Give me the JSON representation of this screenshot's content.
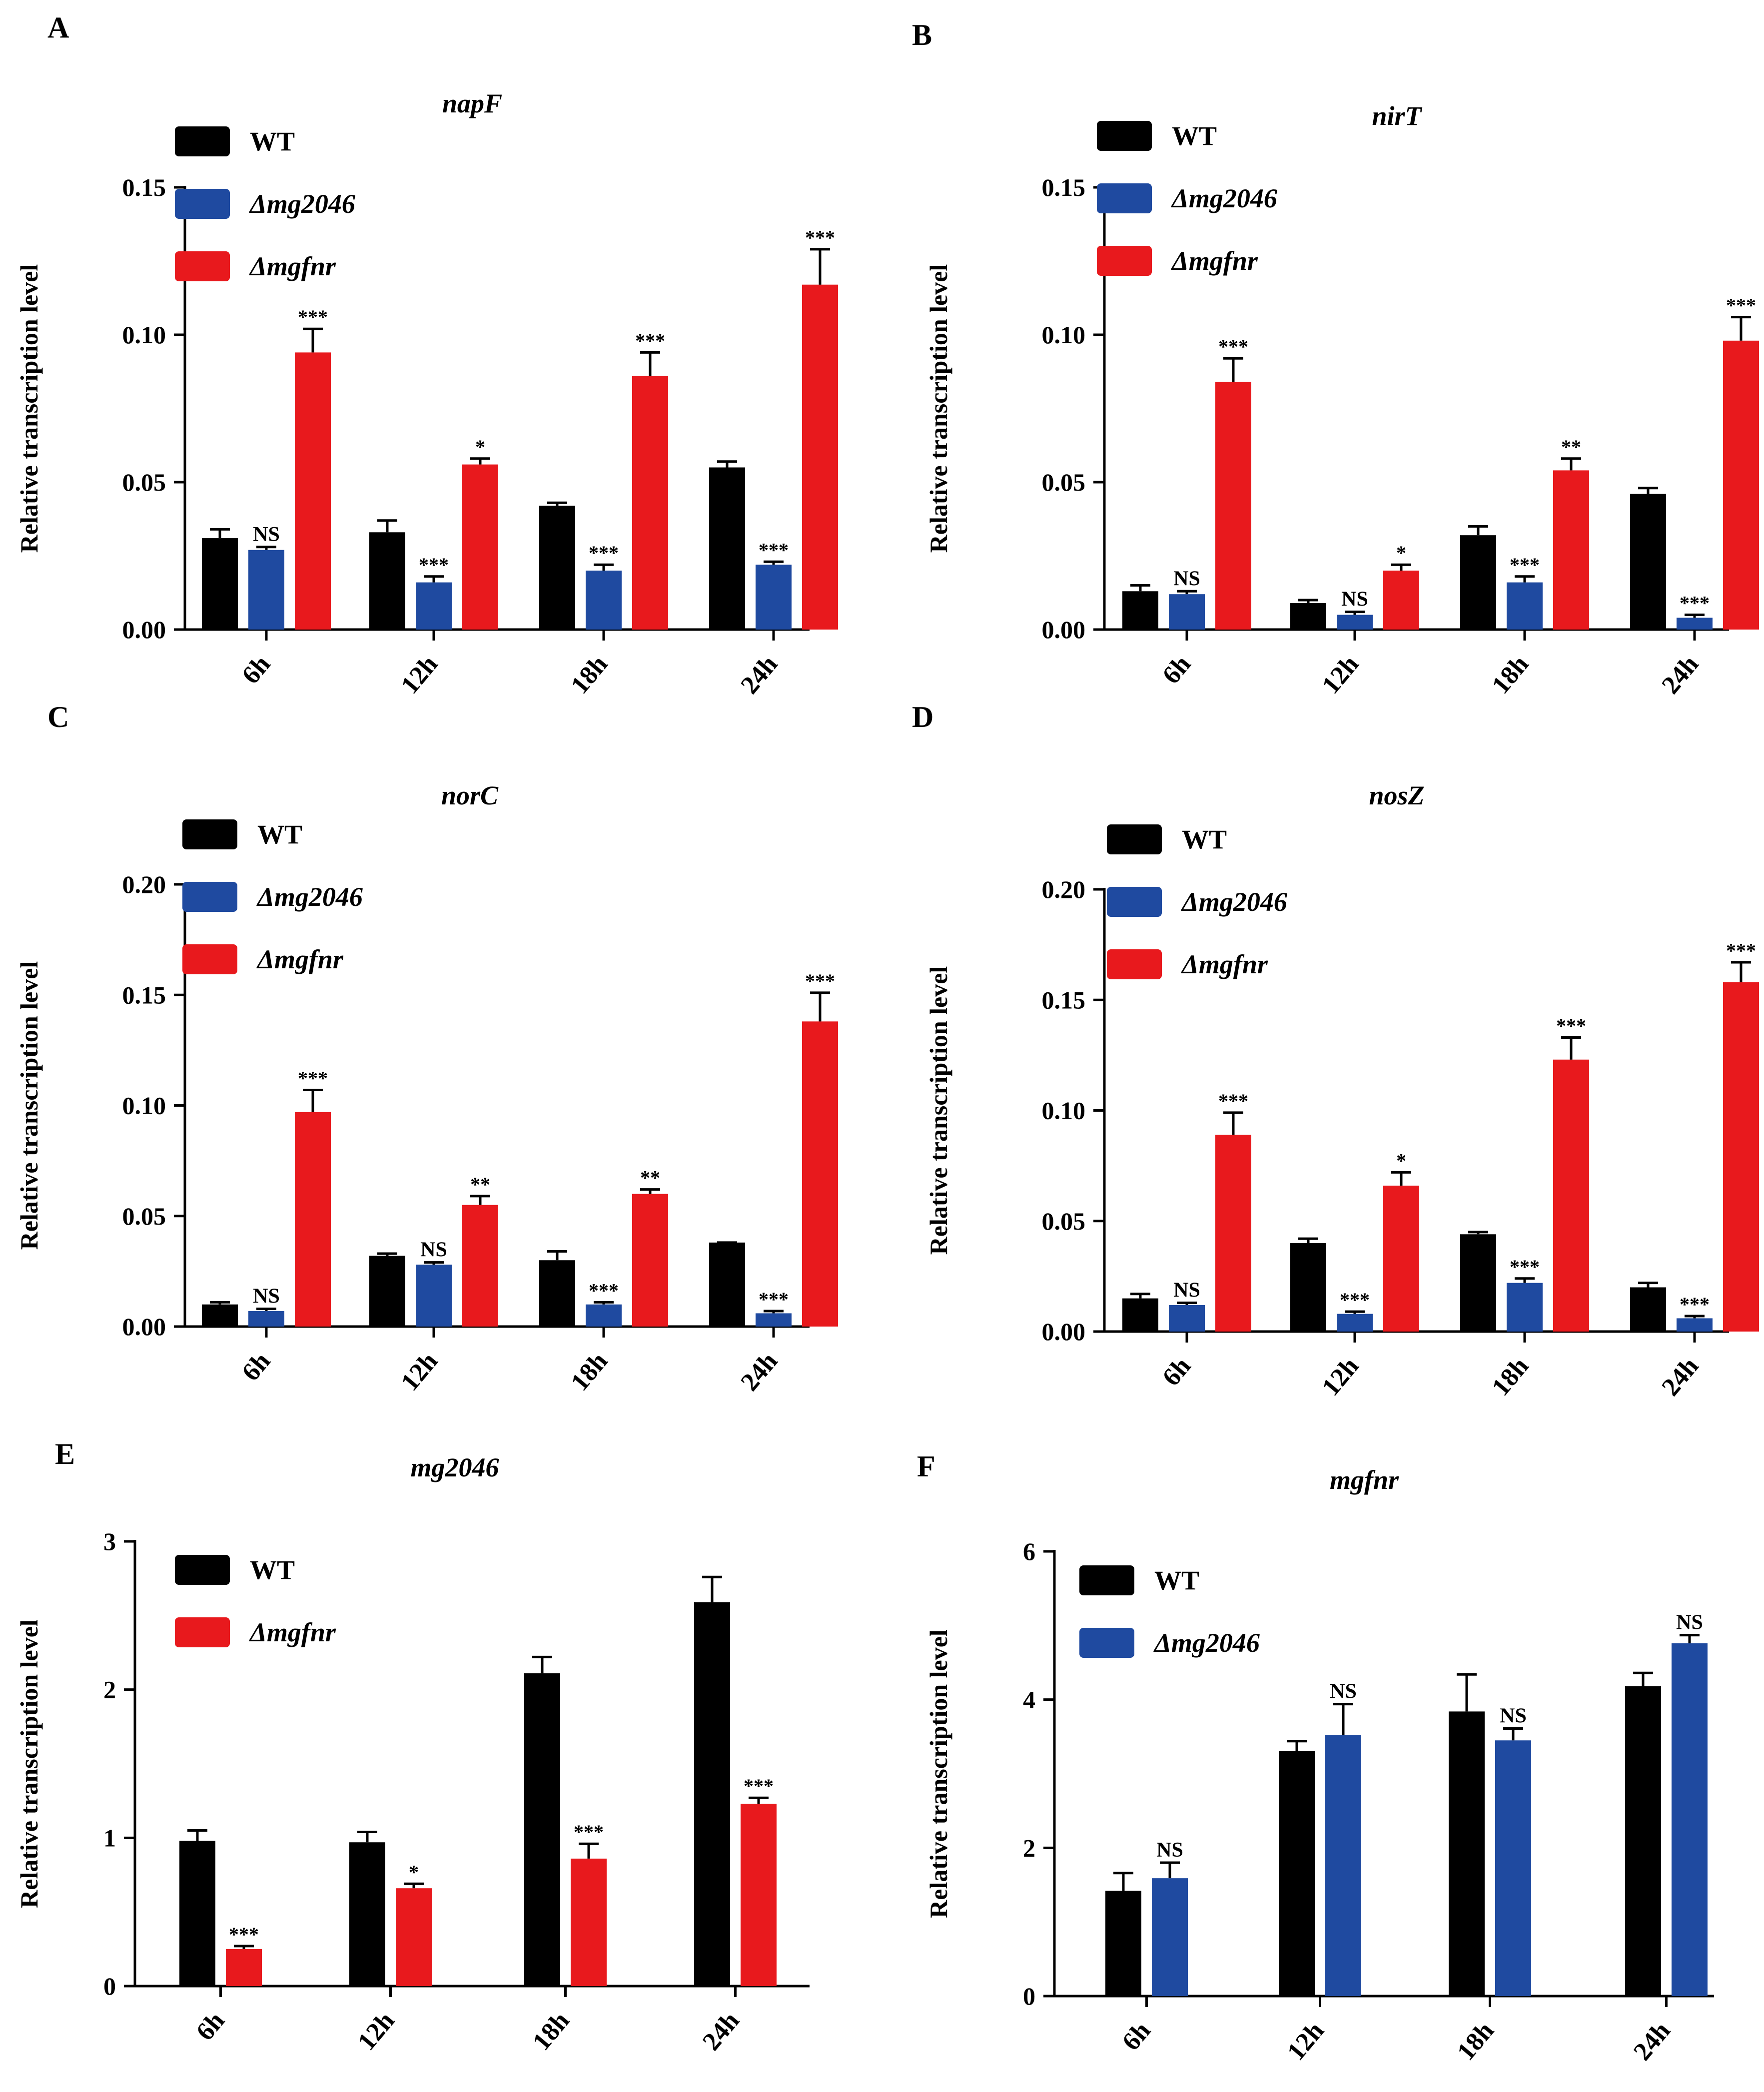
{
  "colors": {
    "WT": "#000000",
    "mg2046": "#1f4aa0",
    "mgfnr": "#e8191d"
  },
  "chart_data": [
    {
      "panel": "A",
      "type": "bar",
      "title": "napF",
      "ylabel": "Relative transcription level",
      "categories": [
        "6h",
        "12h",
        "18h",
        "24h"
      ],
      "ylim": [
        0,
        0.15
      ],
      "yticks": [
        "0.00",
        "0.05",
        "0.10",
        "0.15"
      ],
      "legend": [
        "WT",
        "Δmg2046",
        "Δmgfnr"
      ],
      "series": [
        {
          "name": "WT",
          "color_key": "WT",
          "values": [
            0.031,
            0.033,
            0.042,
            0.055
          ],
          "errors": [
            0.003,
            0.004,
            0.001,
            0.002
          ],
          "sig": [
            "",
            "",
            "",
            ""
          ]
        },
        {
          "name": "Δmg2046",
          "color_key": "mg2046",
          "values": [
            0.027,
            0.016,
            0.02,
            0.022
          ],
          "errors": [
            0.001,
            0.002,
            0.002,
            0.001
          ],
          "sig": [
            "NS",
            "***",
            "***",
            "***"
          ]
        },
        {
          "name": "Δmgfnr",
          "color_key": "mgfnr",
          "values": [
            0.094,
            0.056,
            0.086,
            0.117
          ],
          "errors": [
            0.008,
            0.002,
            0.008,
            0.012
          ],
          "sig": [
            "***",
            "*",
            "***",
            "***"
          ]
        }
      ]
    },
    {
      "panel": "B",
      "type": "bar",
      "title": "nirT",
      "ylabel": "Relative transcription level",
      "categories": [
        "6h",
        "12h",
        "18h",
        "24h"
      ],
      "ylim": [
        0,
        0.15
      ],
      "yticks": [
        "0.00",
        "0.05",
        "0.10",
        "0.15"
      ],
      "legend": [
        "WT",
        "Δmg2046",
        "Δmgfnr"
      ],
      "series": [
        {
          "name": "WT",
          "color_key": "WT",
          "values": [
            0.013,
            0.009,
            0.032,
            0.046
          ],
          "errors": [
            0.002,
            0.001,
            0.003,
            0.002
          ],
          "sig": [
            "",
            "",
            "",
            ""
          ]
        },
        {
          "name": "Δmg2046",
          "color_key": "mg2046",
          "values": [
            0.012,
            0.005,
            0.016,
            0.004
          ],
          "errors": [
            0.001,
            0.001,
            0.002,
            0.001
          ],
          "sig": [
            "NS",
            "NS",
            "***",
            "***"
          ]
        },
        {
          "name": "Δmgfnr",
          "color_key": "mgfnr",
          "values": [
            0.084,
            0.02,
            0.054,
            0.098
          ],
          "errors": [
            0.008,
            0.002,
            0.004,
            0.008
          ],
          "sig": [
            "***",
            "*",
            "**",
            "***"
          ]
        }
      ]
    },
    {
      "panel": "C",
      "type": "bar",
      "title": "norC",
      "ylabel": "Relative transcription level",
      "categories": [
        "6h",
        "12h",
        "18h",
        "24h"
      ],
      "ylim": [
        0,
        0.2
      ],
      "yticks": [
        "0.00",
        "0.05",
        "0.10",
        "0.15",
        "0.20"
      ],
      "legend": [
        "WT",
        "Δmg2046",
        "Δmgfnr"
      ],
      "series": [
        {
          "name": "WT",
          "color_key": "WT",
          "values": [
            0.01,
            0.032,
            0.03,
            0.038
          ],
          "errors": [
            0.001,
            0.001,
            0.004,
            0.0
          ],
          "sig": [
            "",
            "",
            "",
            ""
          ]
        },
        {
          "name": "Δmg2046",
          "color_key": "mg2046",
          "values": [
            0.007,
            0.028,
            0.01,
            0.006
          ],
          "errors": [
            0.001,
            0.001,
            0.001,
            0.001
          ],
          "sig": [
            "NS",
            "NS",
            "***",
            "***"
          ]
        },
        {
          "name": "Δmgfnr",
          "color_key": "mgfnr",
          "values": [
            0.097,
            0.055,
            0.06,
            0.138
          ],
          "errors": [
            0.01,
            0.004,
            0.002,
            0.013
          ],
          "sig": [
            "***",
            "**",
            "**",
            "***"
          ]
        }
      ]
    },
    {
      "panel": "D",
      "type": "bar",
      "title": "nosZ",
      "ylabel": "Relative transcription level",
      "categories": [
        "6h",
        "12h",
        "18h",
        "24h"
      ],
      "ylim": [
        0,
        0.2
      ],
      "yticks": [
        "0.00",
        "0.05",
        "0.10",
        "0.15",
        "0.20"
      ],
      "legend": [
        "WT",
        "Δmg2046",
        "Δmgfnr"
      ],
      "series": [
        {
          "name": "WT",
          "color_key": "WT",
          "values": [
            0.015,
            0.04,
            0.044,
            0.02
          ],
          "errors": [
            0.002,
            0.002,
            0.001,
            0.002
          ],
          "sig": [
            "",
            "",
            "",
            ""
          ]
        },
        {
          "name": "Δmg2046",
          "color_key": "mg2046",
          "values": [
            0.012,
            0.008,
            0.022,
            0.006
          ],
          "errors": [
            0.001,
            0.001,
            0.002,
            0.001
          ],
          "sig": [
            "NS",
            "***",
            "***",
            "***"
          ]
        },
        {
          "name": "Δmgfnr",
          "color_key": "mgfnr",
          "values": [
            0.089,
            0.066,
            0.123,
            0.158
          ],
          "errors": [
            0.01,
            0.006,
            0.01,
            0.009
          ],
          "sig": [
            "***",
            "*",
            "***",
            "***"
          ]
        }
      ]
    },
    {
      "panel": "E",
      "type": "bar",
      "title": "mg2046",
      "ylabel": "Relative transcription level",
      "categories": [
        "6h",
        "12h",
        "18h",
        "24h"
      ],
      "ylim": [
        0,
        3
      ],
      "yticks": [
        "0",
        "1",
        "2",
        "3"
      ],
      "legend": [
        "WT",
        "Δmgfnr"
      ],
      "series": [
        {
          "name": "WT",
          "color_key": "WT",
          "values": [
            0.98,
            0.97,
            2.11,
            2.59
          ],
          "errors": [
            0.07,
            0.07,
            0.11,
            0.17
          ],
          "sig": [
            "",
            "",
            "",
            ""
          ]
        },
        {
          "name": "Δmgfnr",
          "color_key": "mgfnr",
          "values": [
            0.25,
            0.66,
            0.86,
            1.23
          ],
          "errors": [
            0.02,
            0.03,
            0.1,
            0.04
          ],
          "sig": [
            "***",
            "*",
            "***",
            "***"
          ]
        }
      ]
    },
    {
      "panel": "F",
      "type": "bar",
      "title": "mgfnr",
      "ylabel": "Relative transcription level",
      "categories": [
        "6h",
        "12h",
        "18h",
        "24h"
      ],
      "ylim": [
        0,
        6
      ],
      "yticks": [
        "0",
        "2",
        "4",
        "6"
      ],
      "legend": [
        "WT",
        "Δmg2046"
      ],
      "series": [
        {
          "name": "WT",
          "color_key": "WT",
          "values": [
            1.42,
            3.31,
            3.84,
            4.18
          ],
          "errors": [
            0.24,
            0.13,
            0.5,
            0.18
          ],
          "sig": [
            "",
            "",
            "",
            ""
          ]
        },
        {
          "name": "Δmg2046",
          "color_key": "mg2046",
          "values": [
            1.59,
            3.52,
            3.45,
            4.76
          ],
          "errors": [
            0.21,
            0.42,
            0.16,
            0.11
          ],
          "sig": [
            "NS",
            "NS",
            "NS",
            "NS"
          ]
        }
      ]
    }
  ]
}
